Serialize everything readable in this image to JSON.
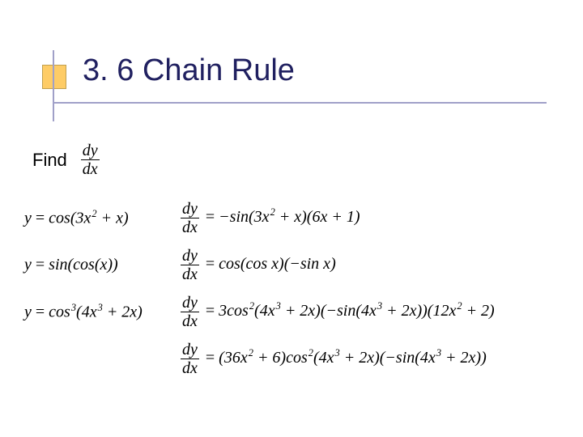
{
  "title": "3. 6 Chain Rule",
  "find_label": "Find",
  "dy": "dy",
  "dx": "dx",
  "eq": "=",
  "lhs1_a": "y ",
  "lhs1_b": " cos(3",
  "lhs1_c": "x",
  "lhs1_exp2": "2",
  "lhs1_d": " + x)",
  "rhs1_a": " −sin(3",
  "rhs1_b": "x",
  "rhs1_c": " + x)(6x + 1)",
  "lhs2_a": "y ",
  "lhs2_b": " sin(cos(x))",
  "rhs2_a": " cos(cos x)(−sin x)",
  "lhs3_a": "y ",
  "lhs3_b": " cos",
  "exp3": "3",
  "lhs3_c": "(4",
  "lhs3_d": "x",
  "lhs3_e": " + 2x)",
  "rhs3_a": " 3cos",
  "rhs3_b": "(4",
  "rhs3_c": "x",
  "rhs3_d": " + 2x)(−sin(4",
  "rhs3_e": "x",
  "rhs3_f": " + 2x))(12",
  "rhs3_g": "x",
  "rhs3_h": " + 2)",
  "rhs4_a": " (36",
  "rhs4_b": "x",
  "rhs4_c": " + 6)cos",
  "rhs4_d": "(4",
  "rhs4_e": "x",
  "rhs4_f": " + 2x)(−sin(4",
  "rhs4_g": "x",
  "rhs4_h": " + 2x))",
  "colors": {
    "accent_square": "#fecc66",
    "line": "#a0a0c8",
    "title_text": "#202060"
  },
  "layout": {
    "slide_w": 720,
    "slide_h": 540
  }
}
